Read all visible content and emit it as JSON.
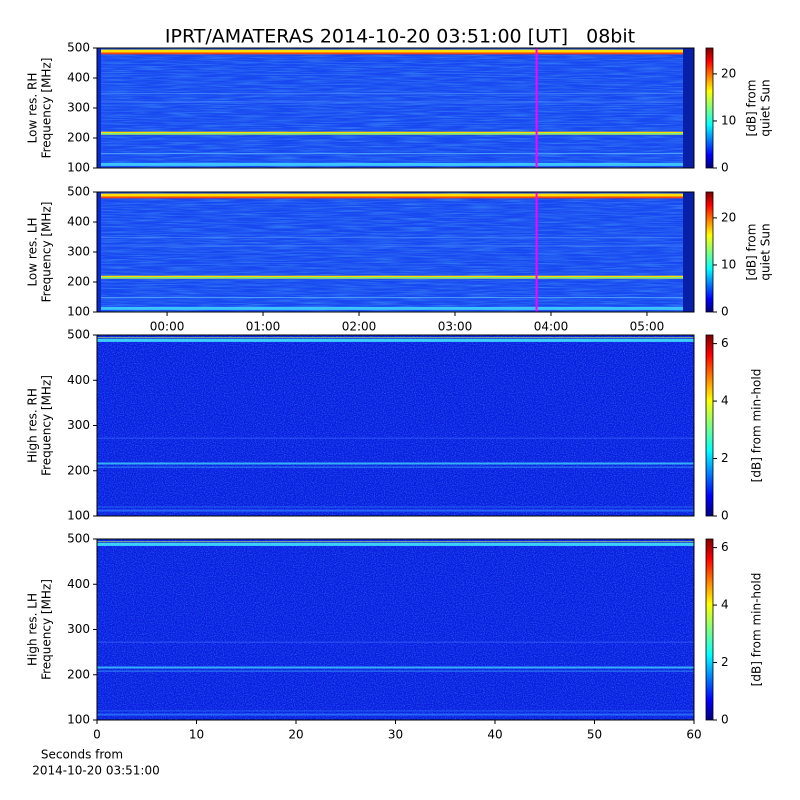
{
  "chart_data": [
    {
      "type": "spectrogram",
      "title": "IPRT/AMATERAS 2014-10-20 03:51:00 [UT]   08bit",
      "ylabel": [
        "Low res. RH",
        "Frequency [MHz]"
      ],
      "ylim": [
        100,
        500
      ],
      "yticks": [
        100,
        200,
        300,
        400,
        500
      ],
      "xlim": [
        -0.73,
        5.49
      ],
      "marker_x": 3.85,
      "marker_color": "#ff00ff",
      "colorbar": {
        "label": [
          "[dB] from",
          "quiet Sun"
        ],
        "lim": [
          0,
          25.5
        ],
        "ticks": [
          0,
          10,
          20
        ]
      }
    },
    {
      "type": "spectrogram",
      "ylabel": [
        "Low res. LH",
        "Frequency [MHz]"
      ],
      "ylim": [
        100,
        500
      ],
      "yticks": [
        100,
        200,
        300,
        400,
        500
      ],
      "xlim": [
        -0.73,
        5.49
      ],
      "xticks": [
        {
          "value": 0,
          "label": "00:00"
        },
        {
          "value": 1,
          "label": "01:00"
        },
        {
          "value": 2,
          "label": "02:00"
        },
        {
          "value": 3,
          "label": "03:00"
        },
        {
          "value": 4,
          "label": "04:00"
        },
        {
          "value": 5,
          "label": "05:00"
        }
      ],
      "marker_x": 3.85,
      "marker_color": "#ff00ff",
      "colorbar": {
        "label": [
          "[dB] from",
          "quiet Sun"
        ],
        "lim": [
          0,
          25.5
        ],
        "ticks": [
          0,
          10,
          20
        ]
      }
    },
    {
      "type": "spectrogram",
      "ylabel": [
        "High res. RH",
        "Frequency [MHz]"
      ],
      "ylim": [
        100,
        500
      ],
      "yticks": [
        100,
        200,
        300,
        400,
        500
      ],
      "xlim": [
        0,
        60
      ],
      "colorbar": {
        "label": [
          "[dB] from min-hold"
        ],
        "lim": [
          0,
          6.3
        ],
        "ticks": [
          0,
          2,
          4,
          6
        ]
      }
    },
    {
      "type": "spectrogram",
      "ylabel": [
        "High res. LH",
        "Frequency [MHz]"
      ],
      "ylim": [
        100,
        500
      ],
      "yticks": [
        100,
        200,
        300,
        400,
        500
      ],
      "xlim": [
        0,
        60
      ],
      "xticks": [
        0,
        10,
        20,
        30,
        40,
        50,
        60
      ],
      "xlabel": [
        "Seconds from",
        "2014-10-20 03:51:00"
      ],
      "colorbar": {
        "label": [
          "[dB] from min-hold"
        ],
        "lim": [
          0,
          6.3
        ],
        "ticks": [
          0,
          2,
          4,
          6
        ]
      }
    }
  ]
}
